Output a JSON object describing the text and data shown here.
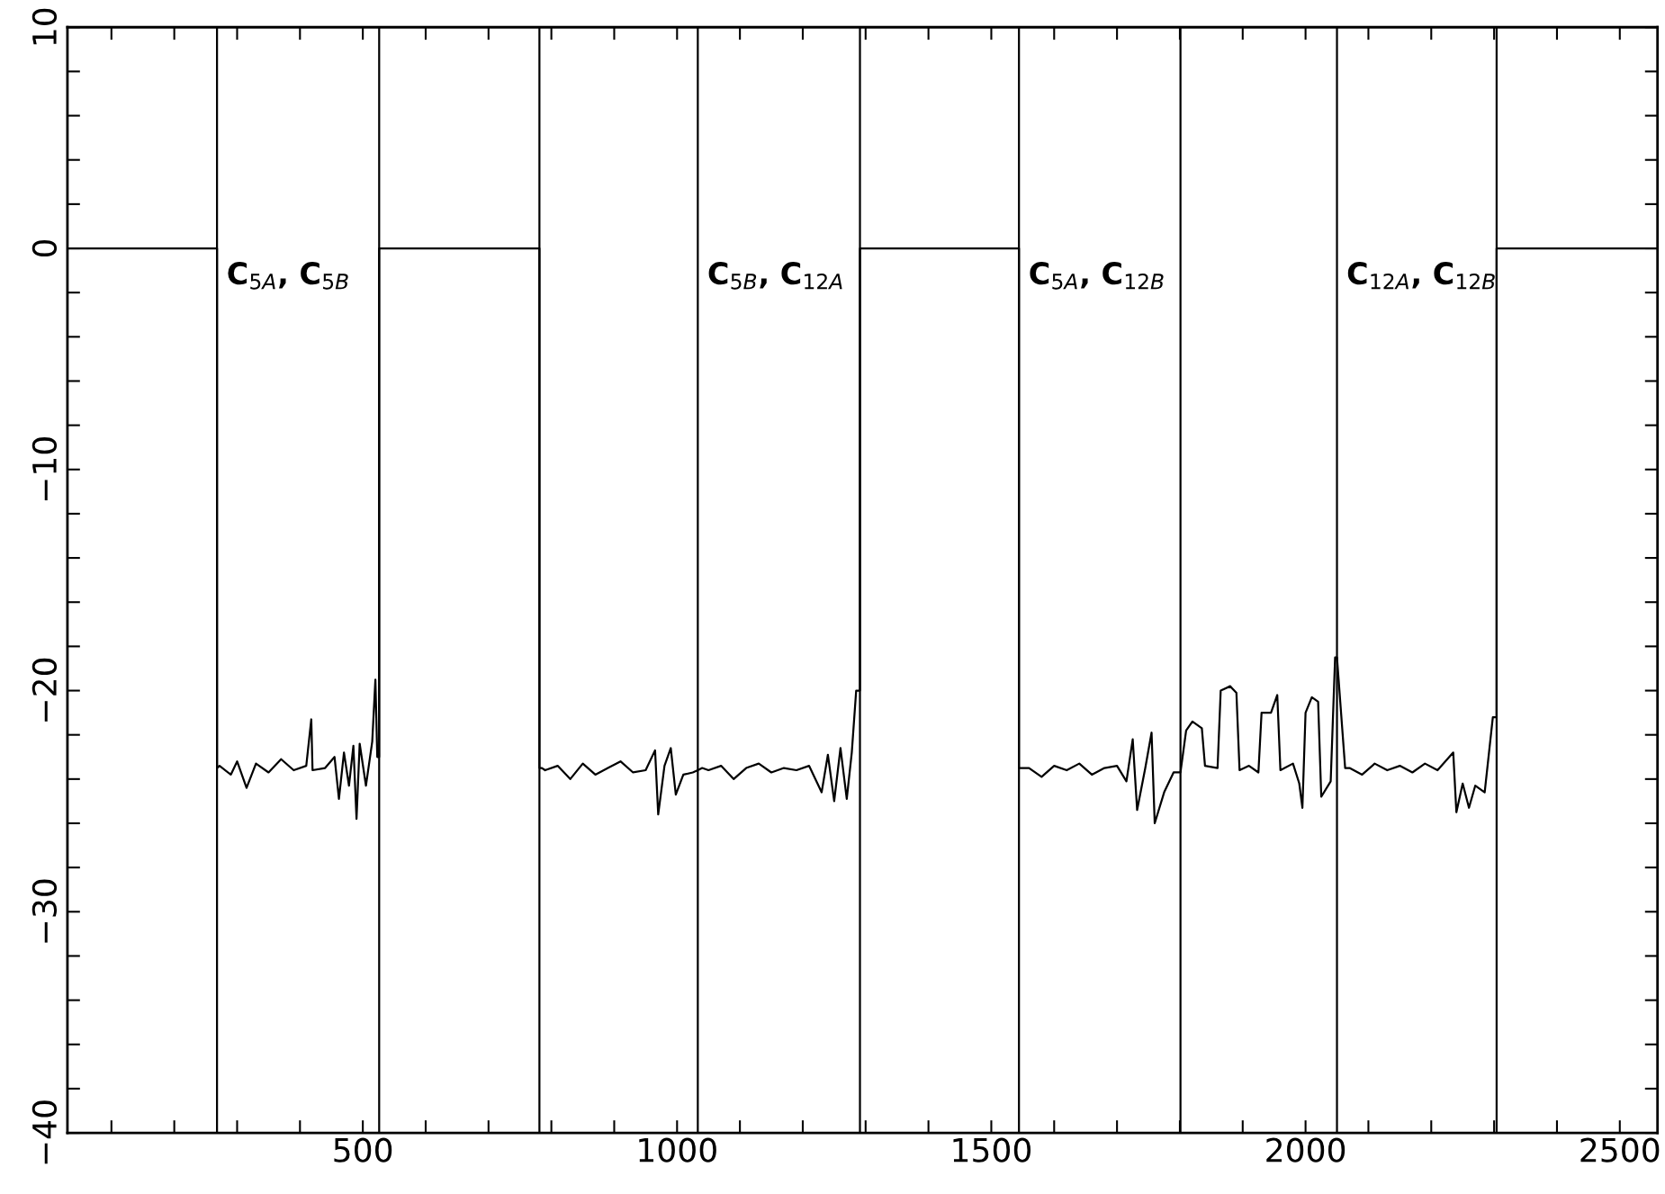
{
  "chart_data": {
    "type": "line",
    "xlim": [
      30,
      2560
    ],
    "ylim": [
      -40,
      10
    ],
    "xticks": [
      {
        "value": 100,
        "label": null
      },
      {
        "value": 200,
        "label": null
      },
      {
        "value": 300,
        "label": null
      },
      {
        "value": 400,
        "label": null
      },
      500,
      {
        "value": 600,
        "label": null
      },
      {
        "value": 700,
        "label": null
      },
      {
        "value": 800,
        "label": null
      },
      {
        "value": 900,
        "label": null
      },
      1000,
      {
        "value": 1100,
        "label": null
      },
      {
        "value": 1200,
        "label": null
      },
      {
        "value": 1300,
        "label": null
      },
      {
        "value": 1400,
        "label": null
      },
      1500,
      {
        "value": 1600,
        "label": null
      },
      {
        "value": 1700,
        "label": null
      },
      {
        "value": 1800,
        "label": null
      },
      {
        "value": 1900,
        "label": null
      },
      2000,
      {
        "value": 2100,
        "label": null
      },
      {
        "value": 2200,
        "label": null
      },
      {
        "value": 2300,
        "label": null
      },
      {
        "value": 2400,
        "label": null
      },
      2500
    ],
    "yticks": [
      -40,
      {
        "value": -38,
        "label": null
      },
      {
        "value": -36,
        "label": null
      },
      {
        "value": -34,
        "label": null
      },
      {
        "value": -32,
        "label": null
      },
      -30,
      {
        "value": -28,
        "label": null
      },
      {
        "value": -26,
        "label": null
      },
      {
        "value": -24,
        "label": null
      },
      {
        "value": -22,
        "label": null
      },
      -20,
      {
        "value": -18,
        "label": null
      },
      {
        "value": -16,
        "label": null
      },
      {
        "value": -14,
        "label": null
      },
      {
        "value": -12,
        "label": null
      },
      -10,
      {
        "value": -8,
        "label": null
      },
      {
        "value": -6,
        "label": null
      },
      {
        "value": -4,
        "label": null
      },
      {
        "value": -2,
        "label": null
      },
      0,
      {
        "value": 2,
        "label": null
      },
      {
        "value": 4,
        "label": null
      },
      {
        "value": 6,
        "label": null
      },
      {
        "value": 8,
        "label": null
      },
      10
    ],
    "grid": false,
    "marker": "none",
    "line_style": "solid",
    "ref_lines": [
      {
        "axis": "x",
        "value": 268,
        "color": "#000000"
      },
      {
        "axis": "x",
        "value": 526,
        "color": "#000000"
      },
      {
        "axis": "x",
        "value": 781,
        "color": "#000000"
      },
      {
        "axis": "x",
        "value": 1033,
        "color": "#000000"
      },
      {
        "axis": "x",
        "value": 1291,
        "color": "#000000"
      },
      {
        "axis": "x",
        "value": 1544,
        "color": "#000000"
      },
      {
        "axis": "x",
        "value": 1801,
        "color": "#000000"
      },
      {
        "axis": "x",
        "value": 2050,
        "color": "#000000"
      },
      {
        "axis": "x",
        "value": 2304,
        "color": "#000000"
      }
    ],
    "series": [
      {
        "color": "#000000",
        "x": [
          30,
          268,
          268,
          272,
          290,
          300,
          315,
          330,
          350,
          370,
          390,
          410,
          418,
          420,
          440,
          455,
          462,
          470,
          478,
          485,
          490,
          495,
          505,
          515,
          520,
          523,
          526,
          526,
          781,
          781,
          785,
          790,
          810,
          830,
          850,
          870,
          890,
          910,
          930,
          950,
          965,
          970,
          980,
          990,
          998,
          1010,
          1025,
          1033,
          1040,
          1050,
          1070,
          1090,
          1110,
          1130,
          1150,
          1170,
          1190,
          1210,
          1230,
          1240,
          1250,
          1260,
          1270,
          1278,
          1285,
          1291,
          1291,
          1544,
          1544,
          1552,
          1560,
          1580,
          1600,
          1620,
          1640,
          1660,
          1680,
          1700,
          1715,
          1725,
          1732,
          1745,
          1755,
          1760,
          1775,
          1790,
          1801,
          1810,
          1820,
          1835,
          1840,
          1860,
          1865,
          1880,
          1890,
          1895,
          1910,
          1925,
          1930,
          1945,
          1955,
          1960,
          1980,
          1990,
          1995,
          2000,
          2010,
          2020,
          2025,
          2040,
          2047,
          2050,
          2063,
          2070,
          2090,
          2110,
          2130,
          2150,
          2170,
          2190,
          2210,
          2235,
          2240,
          2250,
          2260,
          2270,
          2285,
          2298,
          2304,
          2304,
          2560
        ],
        "values": [
          0,
          0,
          -23.5,
          -23.4,
          -23.8,
          -23.2,
          -24.4,
          -23.3,
          -23.7,
          -23.1,
          -23.6,
          -23.4,
          -21.3,
          -23.6,
          -23.5,
          -23.0,
          -24.9,
          -22.8,
          -24.3,
          -22.5,
          -25.8,
          -22.4,
          -24.3,
          -22.3,
          -19.5,
          -23.0,
          -23.0,
          0,
          0,
          -23.5,
          -23.5,
          -23.6,
          -23.4,
          -24.0,
          -23.3,
          -23.8,
          -23.5,
          -23.2,
          -23.7,
          -23.6,
          -22.7,
          -25.6,
          -23.4,
          -22.6,
          -24.7,
          -23.8,
          -23.7,
          -23.6,
          -23.5,
          -23.6,
          -23.4,
          -24.0,
          -23.5,
          -23.3,
          -23.7,
          -23.5,
          -23.6,
          -23.4,
          -24.6,
          -22.9,
          -25.0,
          -22.6,
          -24.9,
          -22.8,
          -20.0,
          -20.0,
          0,
          0,
          -23.5,
          -23.5,
          -23.5,
          -23.9,
          -23.4,
          -23.6,
          -23.3,
          -23.8,
          -23.5,
          -23.4,
          -24.1,
          -22.2,
          -25.4,
          -23.5,
          -21.9,
          -26.0,
          -24.6,
          -23.7,
          -23.7,
          -21.8,
          -21.4,
          -21.7,
          -23.4,
          -23.5,
          -20.0,
          -19.8,
          -20.1,
          -23.6,
          -23.4,
          -23.7,
          -21.0,
          -21.0,
          -20.2,
          -23.6,
          -23.3,
          -24.2,
          -25.3,
          -21.0,
          -20.3,
          -20.5,
          -24.8,
          -24.1,
          -18.5,
          -18.5,
          -23.5,
          -23.5,
          -23.8,
          -23.3,
          -23.6,
          -23.4,
          -23.7,
          -23.3,
          -23.6,
          -22.8,
          -25.5,
          -24.2,
          -25.3,
          -24.3,
          -24.6,
          -21.2,
          -21.2,
          0,
          0
        ]
      }
    ],
    "annotations": [
      "C$_{5A}$, C$_{5B}$",
      "C$_{5B}$, C$_{12A}$",
      "C$_{5A}$, C$_{12B}$",
      "C$_{12A}$, C$_{12B}$"
    ]
  }
}
